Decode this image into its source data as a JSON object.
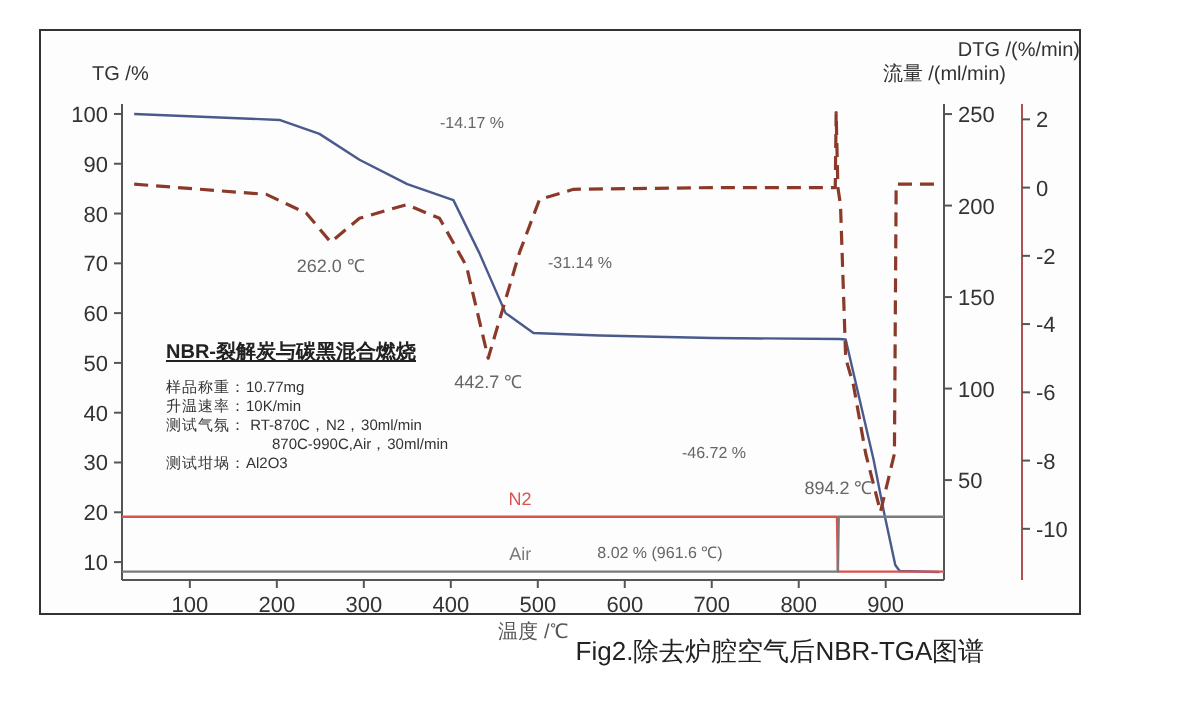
{
  "chart_data": {
    "type": "line",
    "xlabel": "温度 /℃",
    "ylabel": "TG /%",
    "y2label": "流量 /(ml/min)",
    "y3label": "DTG /(%/min)",
    "xlim": [
      22,
      967
    ],
    "xticks": [
      100,
      200,
      300,
      400,
      500,
      600,
      700,
      800,
      900
    ],
    "ylim": [
      6.4,
      102
    ],
    "yticks": [
      10,
      20,
      30,
      40,
      50,
      60,
      70,
      80,
      90,
      100
    ],
    "y2lim": [
      -4.6,
      255.5
    ],
    "y2ticks": [
      50,
      100,
      150,
      200,
      250
    ],
    "y3lim": [
      -11.5,
      2.45
    ],
    "y3ticks": [
      -10,
      -8,
      -6,
      -4,
      -2,
      0,
      2
    ],
    "series": [
      {
        "color": "#4a5a8c",
        "line_style": "solid",
        "x": [
          36,
          203,
          249,
          295,
          350,
          403,
          433,
          463,
          495,
          571,
          700,
          847,
          854,
          886,
          898,
          911,
          916,
          961.6
        ],
        "values": [
          100,
          98.8,
          96,
          90.8,
          85.9,
          82.7,
          72,
          60,
          56,
          55.5,
          55,
          54.8,
          54.7,
          30.6,
          20,
          9.4,
          8.2,
          8.0
        ]
      },
      {
        "color": "#8b3a2a",
        "line_style": "dashed",
        "axis": "y3",
        "x": [
          36,
          188,
          234,
          262,
          295,
          349,
          387,
          418,
          443,
          479,
          502,
          541,
          700,
          842,
          843,
          845,
          848,
          854,
          863,
          877,
          894,
          910,
          911,
          912,
          957
        ],
        "values": [
          0.1,
          -0.2,
          -0.75,
          -1.6,
          -0.9,
          -0.5,
          -0.9,
          -2.3,
          -5.0,
          -1.9,
          -0.35,
          -0.05,
          0,
          0,
          2.2,
          0,
          -0.5,
          -5.0,
          -5.8,
          -7.8,
          -9.5,
          -7.8,
          -3.9,
          0.1,
          0.1
        ]
      },
      {
        "name": "N2",
        "color": "#d9534f",
        "line_style": "solid",
        "axis": "y2",
        "x": [
          22,
          844,
          845,
          967
        ],
        "values": [
          30,
          30,
          0,
          0
        ]
      },
      {
        "name": "Air",
        "color": "#7a7a7a",
        "line_style": "solid",
        "axis": "y2",
        "x": [
          22,
          845,
          846,
          967
        ],
        "values": [
          0,
          0,
          30,
          30
        ]
      }
    ],
    "annotations": [
      "-14.17 %",
      "-31.14 %",
      "-46.72 %",
      "8.02 % (961.6 ℃)",
      {
        "text": "262.0 ℃",
        "x": 262,
        "y": 73.9
      },
      {
        "text": "442.7 ℃",
        "x": 443,
        "y": 50.6
      },
      {
        "text": "894.2 ℃",
        "x": 894,
        "y": 19.7
      },
      "NBR-裂解炭与碳黑混合燃烧",
      "样品称重：10.77mg",
      "升温速率：10K/min",
      "测试气氛：    RT-870C，N2，30ml/min",
      "870C-990C,Air，30ml/min",
      "测试坩埚：Al2O3",
      "Fig2.除去炉腔空气后NBR-TGA图谱"
    ]
  }
}
